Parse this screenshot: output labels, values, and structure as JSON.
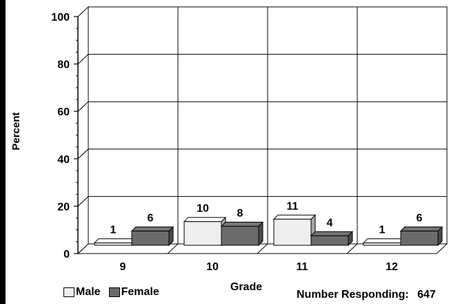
{
  "chart_data": {
    "type": "bar",
    "xlabel": "Grade",
    "ylabel": "Percent",
    "ylim": [
      0,
      100
    ],
    "yticks": [
      "0",
      "20",
      "40",
      "60",
      "80",
      "100"
    ],
    "categories": [
      "9",
      "10",
      "11",
      "12"
    ],
    "series": [
      {
        "name": "Male",
        "values": [
          1,
          10,
          11,
          1
        ],
        "color": "#eeeeee"
      },
      {
        "name": "Female",
        "values": [
          6,
          8,
          4,
          6
        ],
        "color": "#6b6b6b"
      }
    ],
    "grid": true,
    "legend_position": "bottom-left",
    "style": "3d"
  },
  "footnote": {
    "label": "Number Responding:",
    "value": "647"
  }
}
